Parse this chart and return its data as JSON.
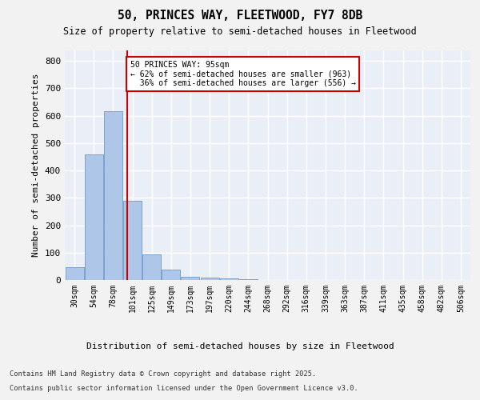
{
  "title1": "50, PRINCES WAY, FLEETWOOD, FY7 8DB",
  "title2": "Size of property relative to semi-detached houses in Fleetwood",
  "xlabel": "Distribution of semi-detached houses by size in Fleetwood",
  "ylabel": "Number of semi-detached properties",
  "bar_labels": [
    "30sqm",
    "54sqm",
    "78sqm",
    "101sqm",
    "125sqm",
    "149sqm",
    "173sqm",
    "197sqm",
    "220sqm",
    "244sqm",
    "268sqm",
    "292sqm",
    "316sqm",
    "339sqm",
    "363sqm",
    "387sqm",
    "411sqm",
    "435sqm",
    "458sqm",
    "482sqm",
    "506sqm"
  ],
  "bar_values": [
    47,
    460,
    617,
    290,
    93,
    37,
    13,
    8,
    5,
    3,
    0,
    0,
    0,
    0,
    0,
    0,
    0,
    0,
    0,
    0,
    0
  ],
  "bar_color": "#aec6e8",
  "bar_edge_color": "#5a8fc0",
  "background_color": "#eaeff7",
  "grid_color": "#ffffff",
  "property_label": "50 PRINCES WAY: 95sqm",
  "pct_smaller": 62,
  "n_smaller": 963,
  "pct_larger": 36,
  "n_larger": 556,
  "vline_color": "#cc0000",
  "vline_x": 2.73,
  "ylim": [
    0,
    840
  ],
  "yticks": [
    0,
    100,
    200,
    300,
    400,
    500,
    600,
    700,
    800
  ],
  "footnote1": "Contains HM Land Registry data © Crown copyright and database right 2025.",
  "footnote2": "Contains public sector information licensed under the Open Government Licence v3.0.",
  "fig_bg": "#f2f2f2"
}
